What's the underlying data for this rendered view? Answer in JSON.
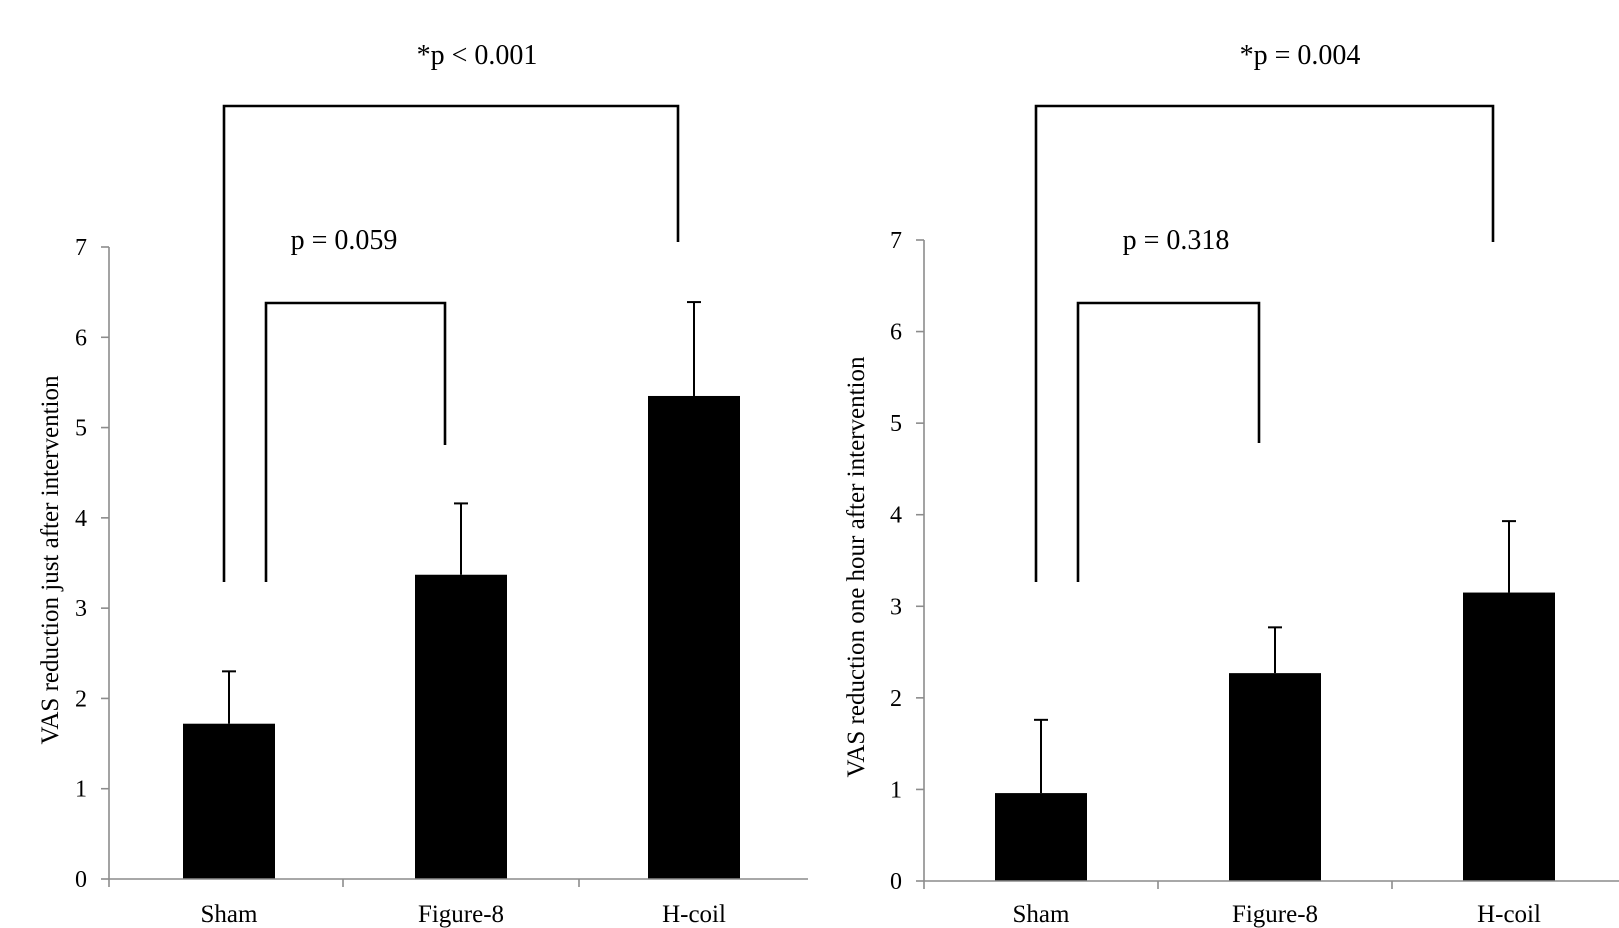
{
  "chart_data": [
    {
      "type": "bar",
      "categories": [
        "Sham",
        "Figure-8",
        "H-coil"
      ],
      "values": [
        1.72,
        3.37,
        5.35
      ],
      "errors": [
        0.58,
        0.79,
        1.04
      ],
      "ylabel": "VAS reduction just after intervention",
      "ylim": [
        0,
        7
      ],
      "yticks": [
        "0",
        "1",
        "2",
        "3",
        "4",
        "5",
        "6",
        "7"
      ],
      "bar_color": "#000000",
      "grid": false,
      "annotations": [
        {
          "label": "*p < 0.001",
          "from": "Sham",
          "to": "H-coil"
        },
        {
          "label": "p = 0.059",
          "from": "Sham",
          "to": "Figure-8"
        }
      ]
    },
    {
      "type": "bar",
      "categories": [
        "Sham",
        "Figure-8",
        "H-coil"
      ],
      "values": [
        0.96,
        2.27,
        3.15
      ],
      "errors": [
        0.8,
        0.5,
        0.78
      ],
      "ylabel": "VAS reduction one hour after intervention",
      "ylim": [
        0,
        7
      ],
      "yticks": [
        "0",
        "1",
        "2",
        "3",
        "4",
        "5",
        "6",
        "7"
      ],
      "bar_color": "#000000",
      "grid": false,
      "annotations": [
        {
          "label": "*p = 0.004",
          "from": "Sham",
          "to": "H-coil"
        },
        {
          "label": "p = 0.318",
          "from": "Sham",
          "to": "Figure-8"
        }
      ]
    }
  ]
}
